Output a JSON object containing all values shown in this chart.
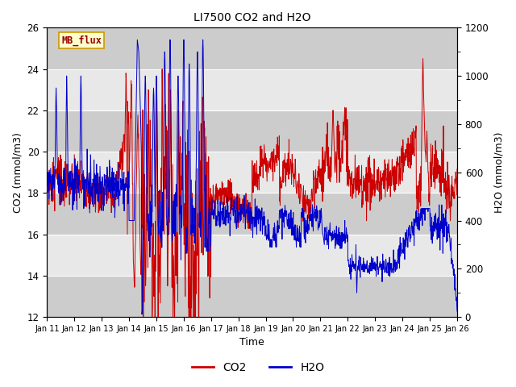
{
  "title": "LI7500 CO2 and H2O",
  "xlabel": "Time",
  "ylabel_left": "CO2 (mmol/m3)",
  "ylabel_right": "H2O (mmol/m3)",
  "xlim_days": [
    11,
    26
  ],
  "ylim_left": [
    12,
    26
  ],
  "ylim_right": [
    0,
    1200
  ],
  "yticks_left": [
    12,
    14,
    16,
    18,
    20,
    22,
    24,
    26
  ],
  "yticks_right": [
    0,
    200,
    400,
    600,
    800,
    1000,
    1200
  ],
  "xtick_labels": [
    "Jan 11",
    "Jan 12",
    "Jan 13",
    "Jan 14",
    "Jan 15",
    "Jan 16",
    "Jan 17",
    "Jan 18",
    "Jan 19",
    "Jan 20",
    "Jan 21",
    "Jan 22",
    "Jan 23",
    "Jan 24",
    "Jan 25",
    "Jan 26"
  ],
  "co2_color": "#cc0000",
  "h2o_color": "#0000cc",
  "background_color": "#ffffff",
  "plot_bg_light": "#e8e8e8",
  "plot_bg_dark": "#cccccc",
  "grid_color": "#ffffff",
  "legend_label_co2": "CO2",
  "legend_label_h2o": "H2O",
  "watermark_text": "MB_flux",
  "watermark_bg": "#ffffcc",
  "watermark_border": "#cc9900",
  "watermark_text_color": "#990000"
}
